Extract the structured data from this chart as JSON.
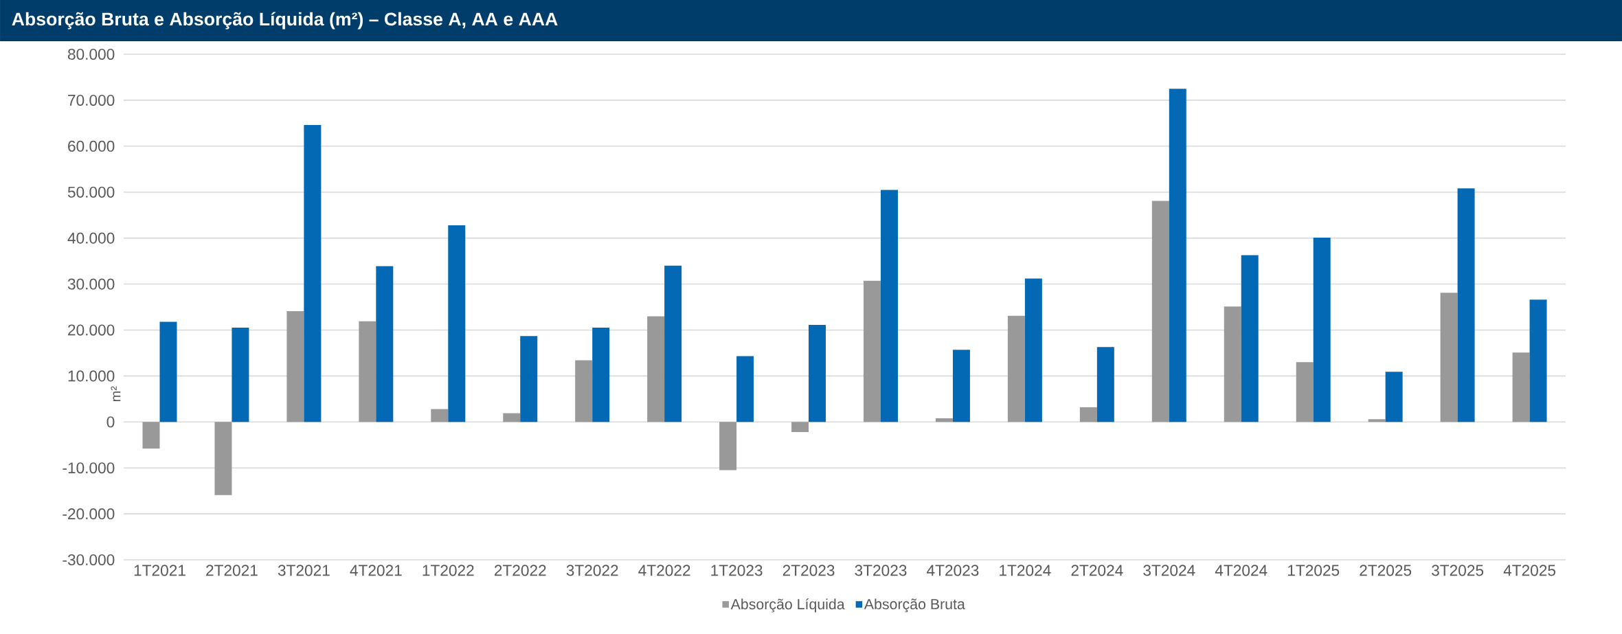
{
  "chart_data": {
    "type": "bar",
    "title": "Absorção Bruta e Absorção Líquida (m²) – Classe A, AA e AAA",
    "ylabel": "m²",
    "categories": [
      "1T2021",
      "2T2021",
      "3T2021",
      "4T2021",
      "1T2022",
      "2T2022",
      "3T2022",
      "4T2022",
      "1T2023",
      "2T2023",
      "3T2023",
      "4T2023",
      "1T2024",
      "2T2024",
      "3T2024",
      "4T2024",
      "1T2025",
      "2T2025",
      "3T2025",
      "4T2025"
    ],
    "series": [
      {
        "name": "Absorção Líquida",
        "color": "#999999",
        "values": [
          -5800,
          -15900,
          24100,
          21900,
          2800,
          1900,
          13400,
          23000,
          -10500,
          -2200,
          30700,
          800,
          23100,
          3200,
          48100,
          25100,
          13000,
          600,
          28100,
          15100
        ]
      },
      {
        "name": "Absorção Bruta",
        "color": "#0369b5",
        "values": [
          21800,
          20500,
          64600,
          33900,
          42800,
          18700,
          20500,
          34000,
          14300,
          21100,
          50500,
          15700,
          31200,
          16300,
          72500,
          36300,
          40100,
          10900,
          50800,
          26600
        ]
      }
    ],
    "ylim": [
      -30000,
      80000
    ],
    "yticks": [
      {
        "value": -30000,
        "label": "-30.000"
      },
      {
        "value": -20000,
        "label": "-20.000"
      },
      {
        "value": -10000,
        "label": "-10.000"
      },
      {
        "value": 0,
        "label": "0"
      },
      {
        "value": 10000,
        "label": "10.000"
      },
      {
        "value": 20000,
        "label": "20.000"
      },
      {
        "value": 30000,
        "label": "30.000"
      },
      {
        "value": 40000,
        "label": "40.000"
      },
      {
        "value": 50000,
        "label": "50.000"
      },
      {
        "value": 60000,
        "label": "60.000"
      },
      {
        "value": 70000,
        "label": "70.000"
      },
      {
        "value": 80000,
        "label": "80.000"
      }
    ],
    "grid": "y",
    "legend": "bottom"
  }
}
